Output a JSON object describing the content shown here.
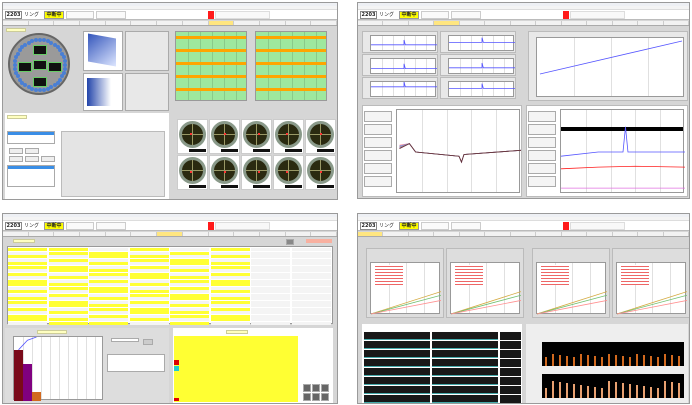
{
  "screens": [
    {
      "lot": "2203",
      "kind": "リング",
      "state": "中断中",
      "active_tab": 8
    },
    {
      "lot": "2203",
      "kind": "リング",
      "state": "中断中",
      "active_tab": 3
    },
    {
      "lot": "2203",
      "kind": "リング",
      "state": "中断中",
      "active_tab": 6
    },
    {
      "lot": "2203",
      "kind": "リング",
      "state": "中断中",
      "active_tab": 0
    }
  ],
  "colors": {
    "state_bg": "#ffff00",
    "alarm": "#ff1a1a",
    "chart_green": "#9ee89e",
    "chart_orange": "#ffa500",
    "trace_blue": "#5555ff",
    "trace_red": "#ff2020",
    "table_yellow": "#ffff33"
  },
  "pareto": {
    "values": [
      48,
      35,
      8
    ],
    "colors": [
      "#7a0a1a",
      "#800080",
      "#d2691e"
    ]
  }
}
